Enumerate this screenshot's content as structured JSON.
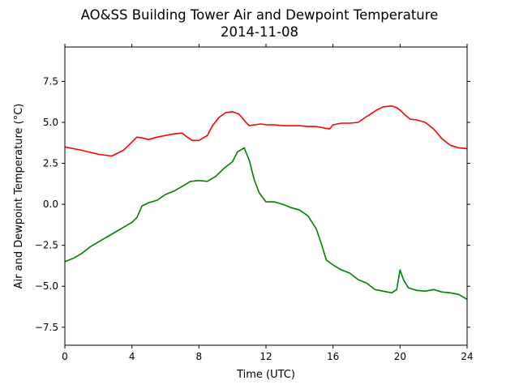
{
  "chart_data": {
    "type": "line",
    "title": "AO&SS Building Tower Air and Dewpoint Temperature",
    "subtitle": "2014-11-08",
    "xlabel": "Time (UTC)",
    "ylabel": "Air and Dewpoint Temperature (°C)",
    "xlim": [
      0,
      24
    ],
    "ylim": [
      -8.6,
      9.6
    ],
    "xticks": [
      0,
      4,
      8,
      12,
      16,
      20,
      24
    ],
    "yticks": [
      -7.5,
      -5.0,
      -2.5,
      0.0,
      2.5,
      5.0,
      7.5
    ],
    "xtick_labels": [
      "0",
      "4",
      "8",
      "12",
      "16",
      "20",
      "24"
    ],
    "ytick_labels": [
      "−7.5",
      "−5.0",
      "−2.5",
      "0.0",
      "2.5",
      "5.0",
      "7.5"
    ],
    "grid": false,
    "series": [
      {
        "color": "#ff0000",
        "x": [
          0,
          1,
          2,
          2.8,
          3.5,
          4,
          4.3,
          4.6,
          5,
          5.5,
          6,
          6.5,
          7,
          7.3,
          7.6,
          8,
          8.5,
          8.8,
          9.2,
          9.6,
          10,
          10.4,
          10.8,
          11,
          11.3,
          11.7,
          12,
          12.5,
          13,
          13.5,
          14,
          14.5,
          15,
          15.5,
          15.8,
          16,
          16.5,
          17,
          17.5,
          18,
          18.3,
          18.6,
          19,
          19.5,
          19.8,
          20,
          20.3,
          20.6,
          21,
          21.5,
          22,
          22.5,
          23,
          23.5,
          24
        ],
        "y": [
          3.5,
          3.3,
          3.05,
          2.95,
          3.3,
          3.8,
          4.1,
          4.05,
          3.95,
          4.1,
          4.2,
          4.3,
          4.35,
          4.1,
          3.9,
          3.9,
          4.2,
          4.8,
          5.3,
          5.6,
          5.65,
          5.5,
          5.0,
          4.8,
          4.85,
          4.9,
          4.85,
          4.85,
          4.8,
          4.8,
          4.8,
          4.75,
          4.75,
          4.65,
          4.6,
          4.85,
          4.95,
          4.95,
          5.0,
          5.35,
          5.55,
          5.75,
          5.95,
          6.0,
          5.9,
          5.75,
          5.45,
          5.2,
          5.15,
          5.0,
          4.6,
          4.0,
          3.6,
          3.45,
          3.4
        ]
      },
      {
        "color": "#008000",
        "x": [
          0,
          0.5,
          1,
          1.5,
          2,
          2.5,
          3,
          3.5,
          4,
          4.3,
          4.6,
          5,
          5.5,
          6,
          6.5,
          7,
          7.5,
          8,
          8.5,
          9,
          9.5,
          10,
          10.3,
          10.7,
          11,
          11.3,
          11.6,
          12,
          12.5,
          13,
          13.5,
          14,
          14.5,
          15,
          15.3,
          15.6,
          16,
          16.5,
          17,
          17.5,
          18,
          18.5,
          19,
          19.5,
          19.8,
          20,
          20.2,
          20.5,
          21,
          21.5,
          22,
          22.5,
          23,
          23.5,
          24
        ],
        "y": [
          -3.5,
          -3.3,
          -3.0,
          -2.6,
          -2.3,
          -2.0,
          -1.7,
          -1.4,
          -1.1,
          -0.8,
          -0.1,
          0.1,
          0.25,
          0.6,
          0.8,
          1.1,
          1.4,
          1.45,
          1.4,
          1.7,
          2.2,
          2.6,
          3.2,
          3.45,
          2.7,
          1.5,
          0.7,
          0.15,
          0.15,
          0.0,
          -0.2,
          -0.35,
          -0.7,
          -1.5,
          -2.4,
          -3.4,
          -3.7,
          -4.0,
          -4.2,
          -4.6,
          -4.8,
          -5.2,
          -5.3,
          -5.4,
          -5.2,
          -4.0,
          -4.6,
          -5.1,
          -5.25,
          -5.3,
          -5.2,
          -5.35,
          -5.4,
          -5.5,
          -5.8
        ]
      }
    ]
  }
}
